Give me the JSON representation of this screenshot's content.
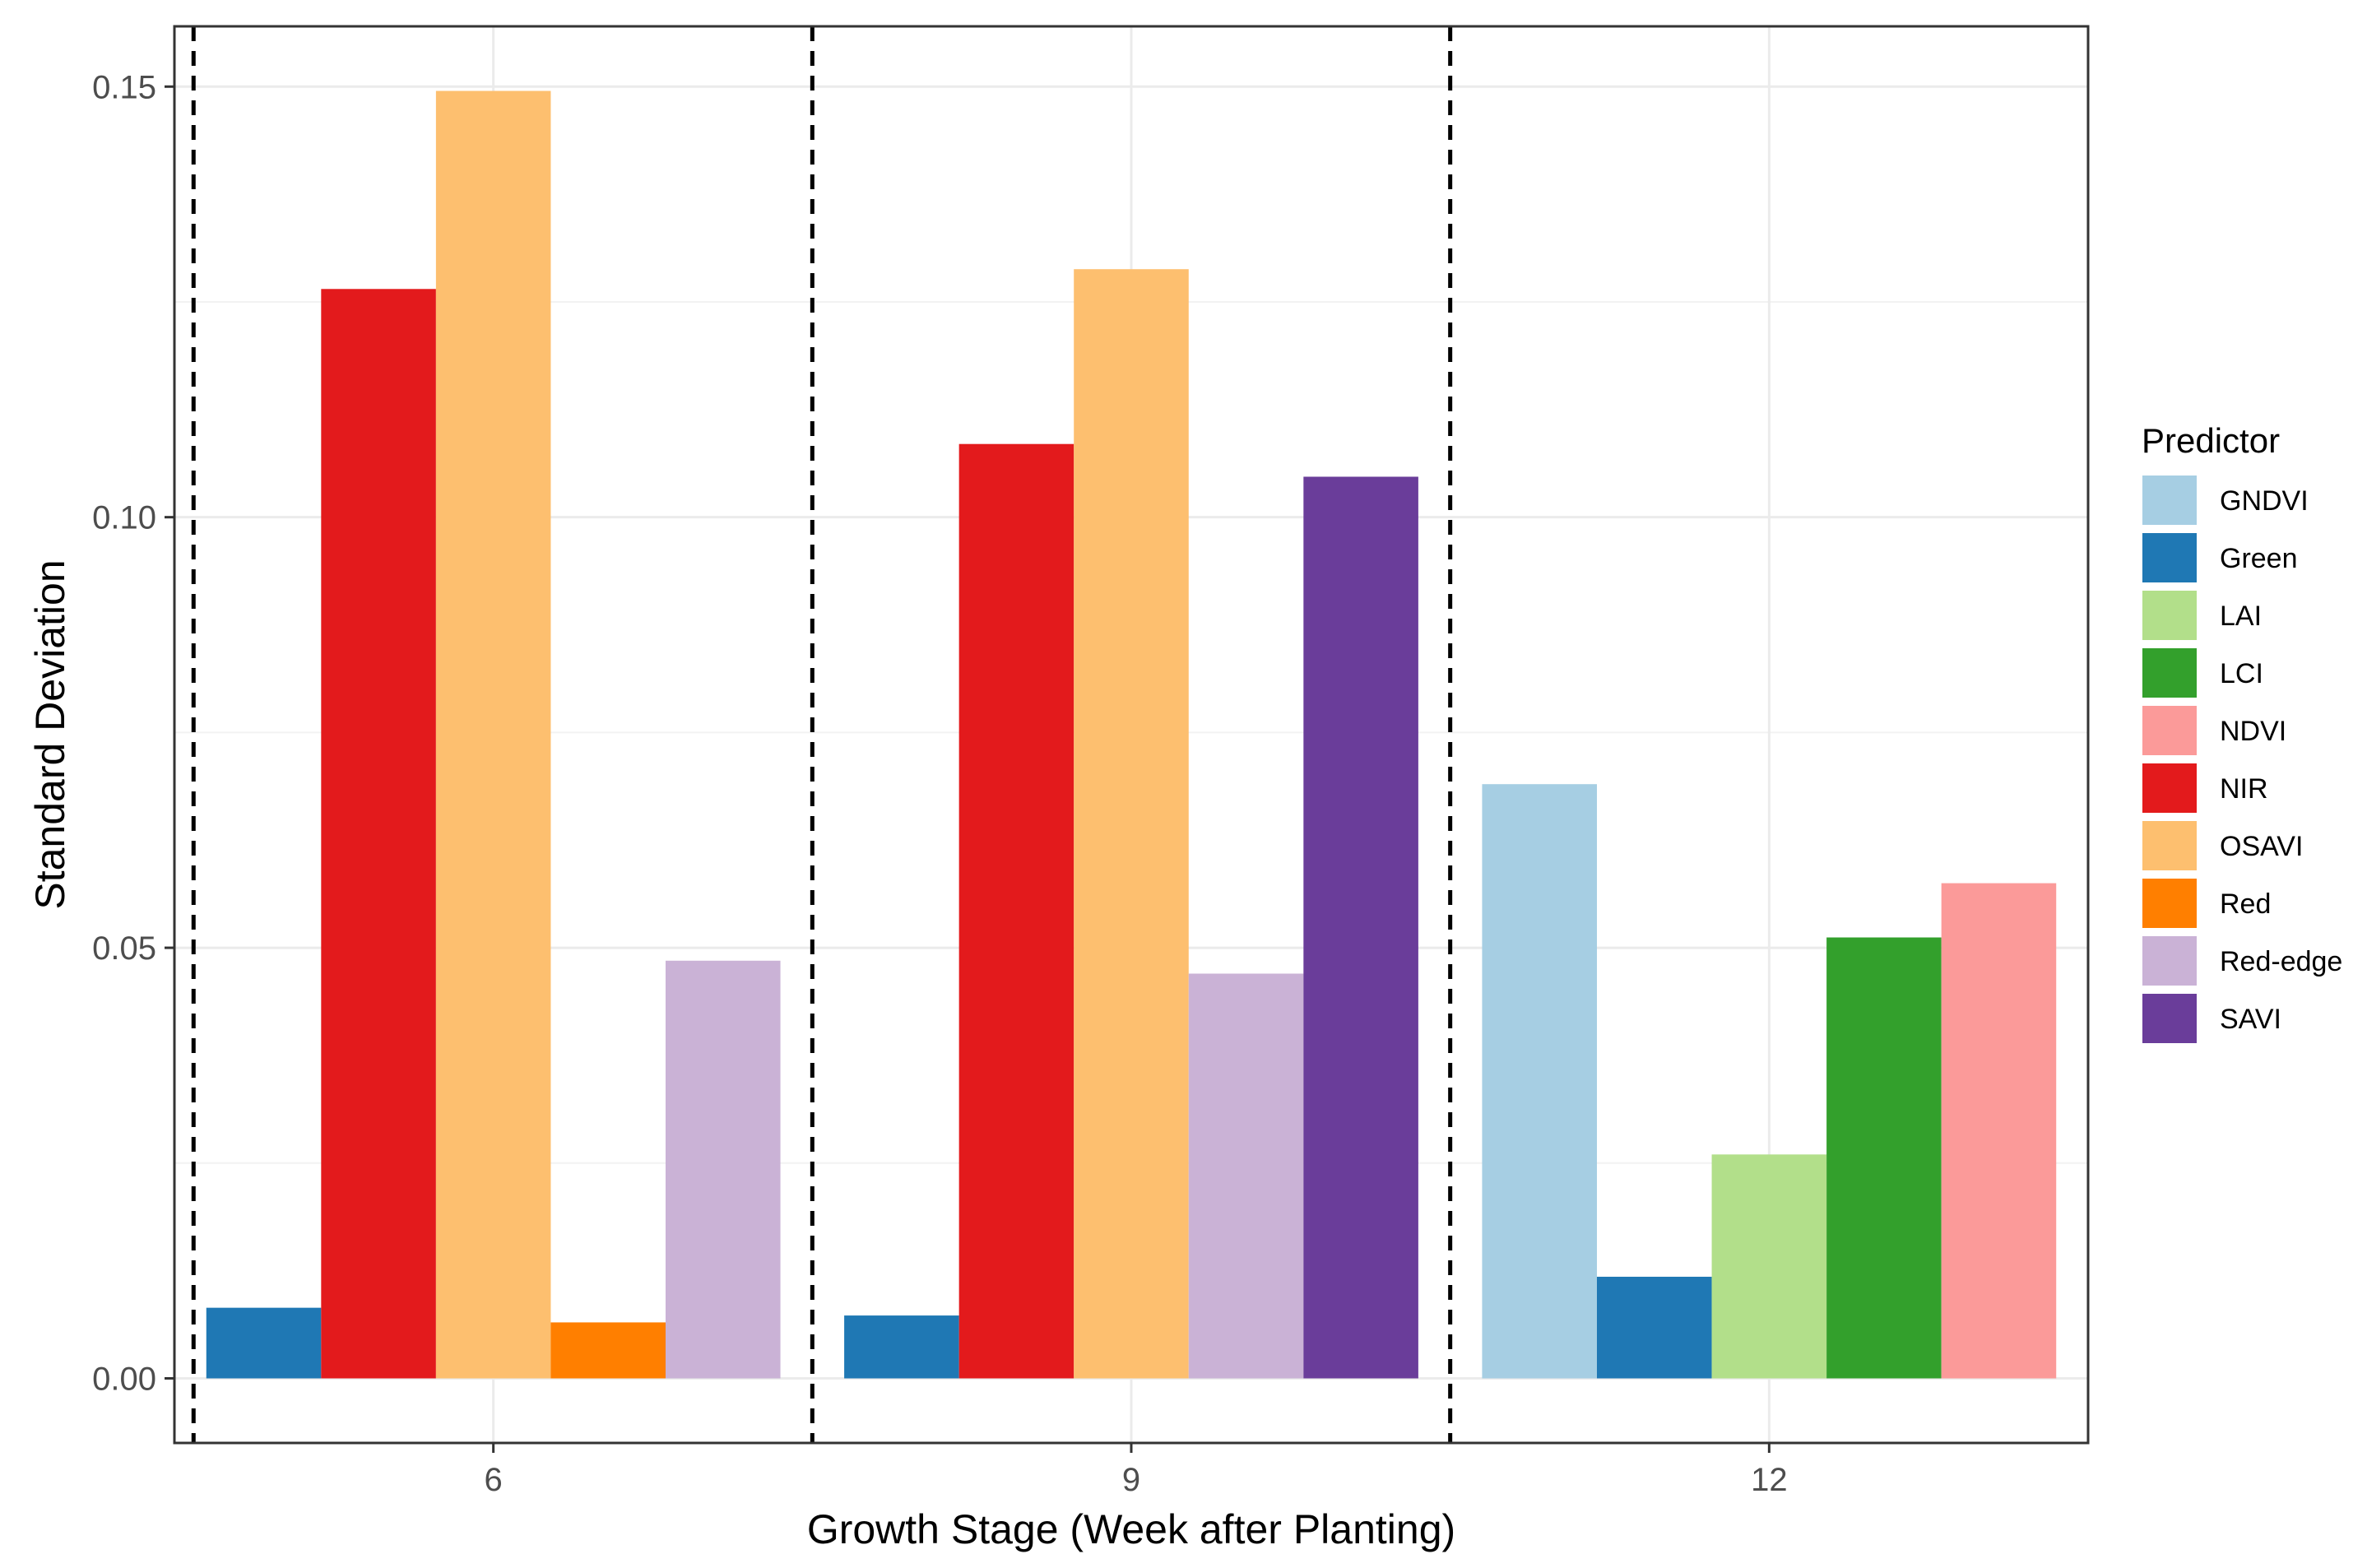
{
  "chart_data": {
    "type": "bar",
    "title": "",
    "xlabel": "Growth Stage (Week after Planting)",
    "ylabel": "Standard Deviation",
    "ylim": [
      -0.0075,
      0.157
    ],
    "yticks": [
      0.0,
      0.05,
      0.1,
      0.15
    ],
    "ytick_labels": [
      "0.00",
      "0.05",
      "0.10",
      "0.15"
    ],
    "grid": true,
    "legend_position": "right",
    "legend_title": "Predictor",
    "categories": [
      "6",
      "9",
      "12"
    ],
    "predictors": [
      {
        "name": "GNDVI",
        "color": "#A6CEE3"
      },
      {
        "name": "Green",
        "color": "#1F78B4"
      },
      {
        "name": "LAI",
        "color": "#B2DF8A"
      },
      {
        "name": "LCI",
        "color": "#33A02C"
      },
      {
        "name": "NDVI",
        "color": "#FB9A99"
      },
      {
        "name": "NIR",
        "color": "#E31A1C"
      },
      {
        "name": "OSAVI",
        "color": "#FDBF6F"
      },
      {
        "name": "Red",
        "color": "#FF7F00"
      },
      {
        "name": "Red-edge",
        "color": "#CAB2D6"
      },
      {
        "name": "SAVI",
        "color": "#6A3D9A"
      }
    ],
    "groups": [
      {
        "category": "6",
        "bars": [
          {
            "predictor": "Green",
            "value": 0.0082
          },
          {
            "predictor": "NIR",
            "value": 0.1265
          },
          {
            "predictor": "OSAVI",
            "value": 0.1495
          },
          {
            "predictor": "Red",
            "value": 0.0065
          },
          {
            "predictor": "Red-edge",
            "value": 0.0485
          }
        ]
      },
      {
        "category": "9",
        "bars": [
          {
            "predictor": "Green",
            "value": 0.0073
          },
          {
            "predictor": "NIR",
            "value": 0.1085
          },
          {
            "predictor": "OSAVI",
            "value": 0.1288
          },
          {
            "predictor": "Red-edge",
            "value": 0.047
          },
          {
            "predictor": "SAVI",
            "value": 0.1047
          }
        ]
      },
      {
        "category": "12",
        "bars": [
          {
            "predictor": "GNDVI",
            "value": 0.069
          },
          {
            "predictor": "Green",
            "value": 0.0118
          },
          {
            "predictor": "LAI",
            "value": 0.026
          },
          {
            "predictor": "LCI",
            "value": 0.0512
          },
          {
            "predictor": "NDVI",
            "value": 0.0575
          }
        ]
      }
    ],
    "separators_between_groups": true
  }
}
